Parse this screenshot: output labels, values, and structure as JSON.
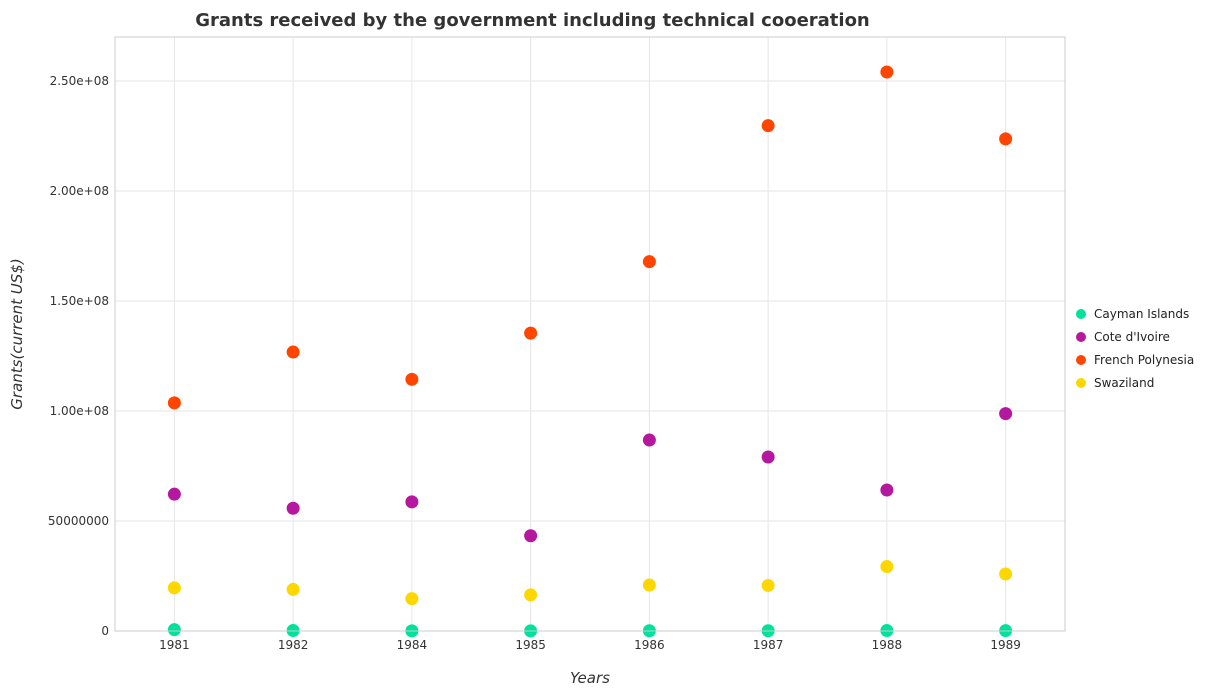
{
  "chart_data": {
    "type": "scatter",
    "title": "Grants received by the government including technical cooeration",
    "xlabel": "Years",
    "ylabel": "Grants(current US$)",
    "categories": [
      "1981",
      "1982",
      "1984",
      "1985",
      "1986",
      "1987",
      "1988",
      "1989"
    ],
    "ylim": [
      0,
      270000000
    ],
    "yticks": [
      0,
      50000000,
      100000000,
      150000000,
      200000000,
      250000000
    ],
    "ytick_labels": [
      "0",
      "50000000",
      "1.00e+08",
      "1.50e+08",
      "2.00e+08",
      "2.50e+08"
    ],
    "legend_position": "right",
    "grid": true,
    "series": [
      {
        "name": "Cayman Islands",
        "color": "#00e29b",
        "values": [
          600000,
          200000,
          50000,
          30000,
          100000,
          100000,
          200000,
          150000
        ]
      },
      {
        "name": "Cote d'Ivoire",
        "color": "#b5179e",
        "values": [
          62200000,
          55800000,
          58700000,
          43300000,
          86800000,
          79100000,
          64100000,
          98800000
        ]
      },
      {
        "name": "French Polynesia",
        "color": "#ff4500",
        "values": [
          103700000,
          126800000,
          114400000,
          135400000,
          167900000,
          229700000,
          254100000,
          223700000
        ]
      },
      {
        "name": "Swaziland",
        "color": "#ffd700",
        "values": [
          19600000,
          18900000,
          14700000,
          16400000,
          20900000,
          20700000,
          29300000,
          25900000
        ]
      }
    ]
  }
}
